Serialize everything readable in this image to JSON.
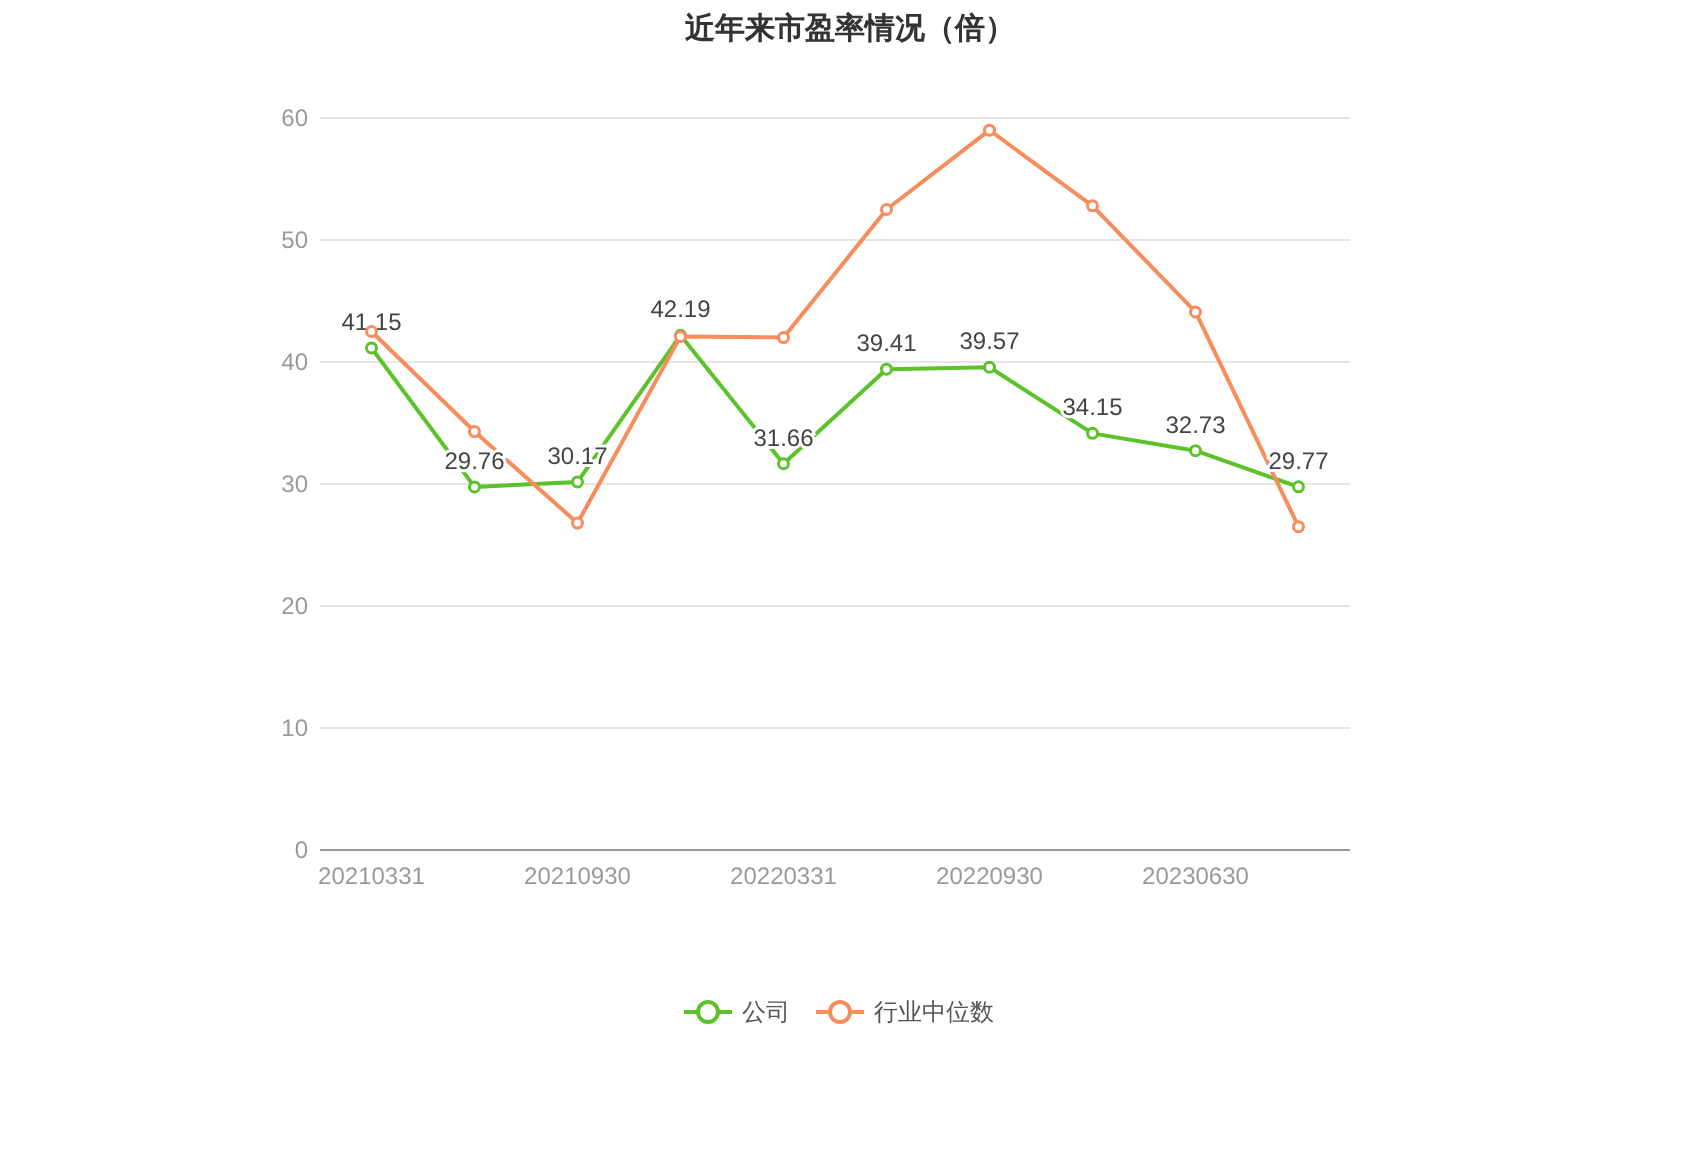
{
  "chart_data": {
    "type": "line",
    "title": "近年来市盈率情况（倍）",
    "categories": [
      "20210331",
      null,
      "20210930",
      null,
      "20220331",
      null,
      "20220930",
      null,
      "20230630",
      null
    ],
    "series": [
      {
        "name": "公司",
        "color": "#5cc22a",
        "values": [
          41.15,
          29.76,
          30.17,
          42.19,
          31.66,
          39.41,
          39.57,
          34.15,
          32.73,
          29.77
        ],
        "value_labels": [
          "41.15",
          "29.76",
          "30.17",
          "42.19",
          "31.66",
          "39.41",
          "39.57",
          "34.15",
          "32.73",
          "29.77"
        ]
      },
      {
        "name": "行业中位数",
        "color": "#f78c5c",
        "values": [
          42.5,
          34.3,
          26.8,
          42.1,
          42.0,
          52.5,
          59.0,
          52.8,
          44.1,
          26.5
        ]
      }
    ],
    "ylim": [
      0,
      60
    ],
    "yticks": [
      0,
      10,
      20,
      30,
      40,
      50,
      60
    ],
    "grid": "y",
    "legend": "bottom",
    "marker": "circle",
    "line_style": "solid"
  }
}
